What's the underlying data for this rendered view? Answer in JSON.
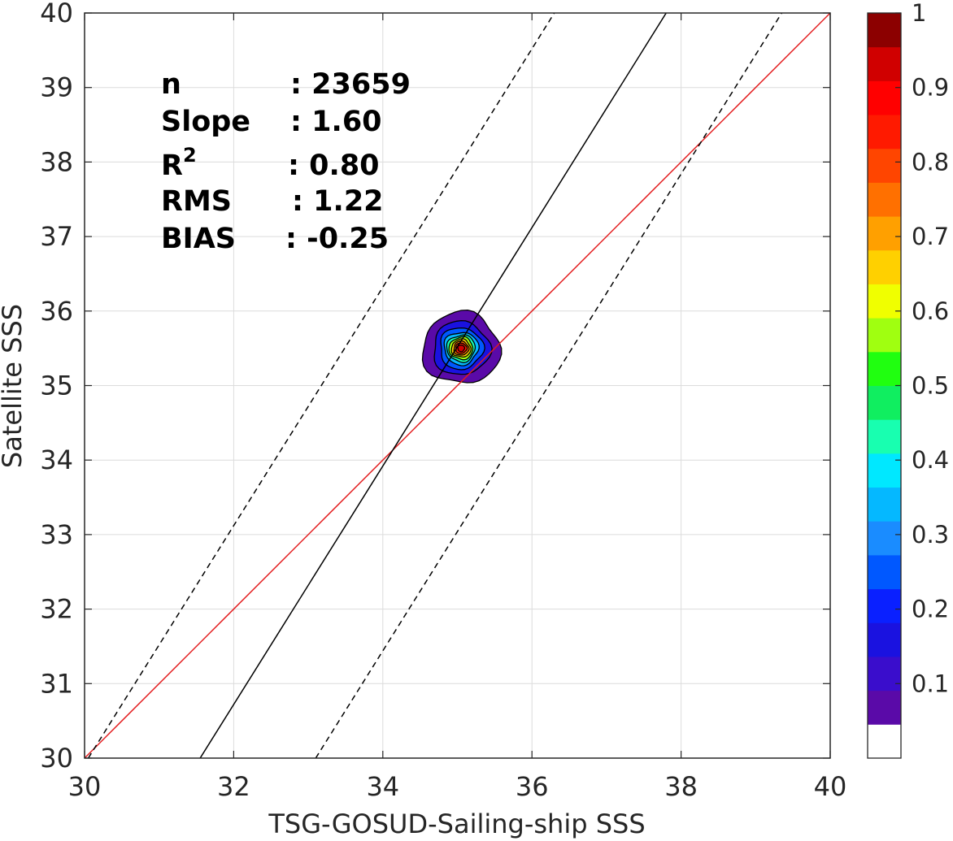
{
  "chart_data": {
    "type": "contour",
    "xlabel": "TSG-GOSUD-Sailing-ship SSS",
    "ylabel": "Satellite SSS",
    "xlim": [
      30,
      40
    ],
    "ylim": [
      30,
      40
    ],
    "xticks": [
      "30",
      "32",
      "34",
      "36",
      "38",
      "40"
    ],
    "yticks": [
      "30",
      "31",
      "32",
      "33",
      "34",
      "35",
      "36",
      "37",
      "38",
      "39",
      "40"
    ],
    "grid": true,
    "stats": [
      {
        "key": "n",
        "value": ": 23659"
      },
      {
        "key": "Slope",
        "value": ": 1.60"
      },
      {
        "key": "R",
        "sup": "2",
        "value": ": 0.80"
      },
      {
        "key": "RMS",
        "value": ": 1.22"
      },
      {
        "key": "BIAS",
        "value": ": -0.25"
      }
    ],
    "lines": [
      {
        "name": "one-to-one",
        "color": "#e31a1c",
        "style": "solid",
        "x": [
          30,
          40
        ],
        "y": [
          30,
          40
        ]
      },
      {
        "name": "regression",
        "color": "#000000",
        "style": "solid",
        "x": [
          31.55,
          37.8
        ],
        "y": [
          30,
          40
        ]
      },
      {
        "name": "upper-bound",
        "color": "#000000",
        "style": "dashed",
        "x": [
          30.05,
          36.3
        ],
        "y": [
          30,
          40
        ]
      },
      {
        "name": "lower-bound",
        "color": "#000000",
        "style": "dashed",
        "x": [
          33.1,
          39.35
        ],
        "y": [
          30,
          40
        ]
      }
    ],
    "density": {
      "center": [
        35.05,
        35.5
      ],
      "levels": [
        {
          "level": 0.05,
          "rx": 0.52,
          "ry": 0.48
        },
        {
          "level": 0.15,
          "rx": 0.38,
          "ry": 0.36
        },
        {
          "level": 0.25,
          "rx": 0.29,
          "ry": 0.28
        },
        {
          "level": 0.35,
          "rx": 0.23,
          "ry": 0.22
        },
        {
          "level": 0.45,
          "rx": 0.19,
          "ry": 0.18
        },
        {
          "level": 0.55,
          "rx": 0.16,
          "ry": 0.15
        },
        {
          "level": 0.65,
          "rx": 0.13,
          "ry": 0.12
        },
        {
          "level": 0.75,
          "rx": 0.1,
          "ry": 0.095
        },
        {
          "level": 0.85,
          "rx": 0.075,
          "ry": 0.07
        },
        {
          "level": 0.95,
          "rx": 0.045,
          "ry": 0.045
        }
      ]
    },
    "colorbar": {
      "range": [
        0,
        1
      ],
      "ticks": [
        "0.1",
        "0.2",
        "0.3",
        "0.4",
        "0.5",
        "0.6",
        "0.7",
        "0.8",
        "0.9",
        "1"
      ],
      "colors": [
        "#ffffff",
        "#5a0aa8",
        "#3a0dcc",
        "#1a12e0",
        "#0a20ff",
        "#0058ff",
        "#1a8cff",
        "#05b8ff",
        "#00e8ff",
        "#18ffb0",
        "#10ee60",
        "#20ff10",
        "#a0ff10",
        "#f0ff00",
        "#ffd000",
        "#ffa000",
        "#ff7000",
        "#ff4500",
        "#ff1a00",
        "#ff0000",
        "#d00000",
        "#8c0000"
      ]
    }
  }
}
